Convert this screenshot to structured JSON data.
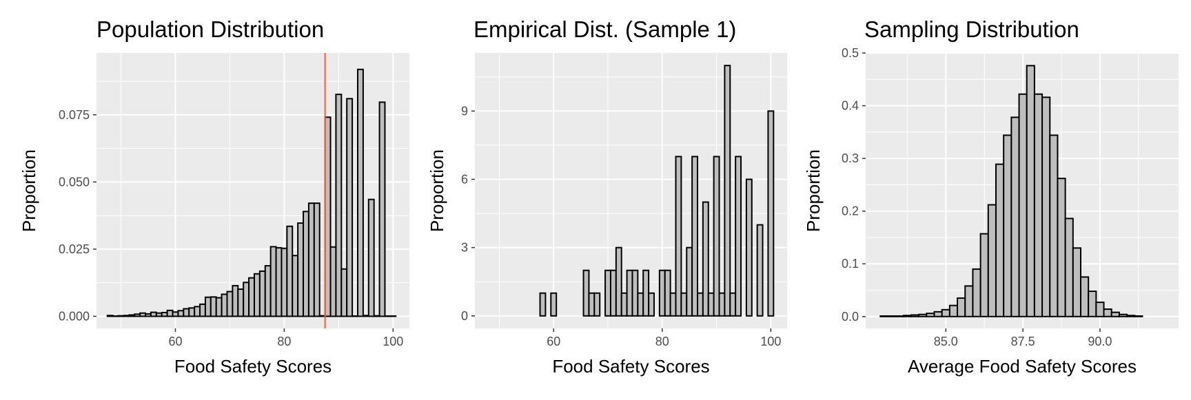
{
  "chart_data": [
    {
      "type": "bar",
      "title": "Population Distribution",
      "xlabel": "Food Safety Scores",
      "ylabel": "Proportion",
      "xlim": [
        45.5,
        103.0
      ],
      "ylim": [
        -0.0045,
        0.098
      ],
      "xticks": [
        60,
        80,
        100
      ],
      "xtick_labels": [
        "60",
        "80",
        "100"
      ],
      "yticks": [
        0.0,
        0.025,
        0.05,
        0.075
      ],
      "ytick_labels": [
        "0.000",
        "0.025",
        "0.050",
        "0.075"
      ],
      "bin_width": 1,
      "x": [
        48,
        49,
        50,
        51,
        52,
        53,
        54,
        55,
        56,
        57,
        58,
        59,
        60,
        61,
        62,
        63,
        64,
        65,
        66,
        67,
        68,
        69,
        70,
        71,
        72,
        73,
        74,
        75,
        76,
        77,
        78,
        79,
        80,
        81,
        82,
        83,
        84,
        85,
        86,
        87,
        88,
        89,
        90,
        91,
        92,
        93,
        94,
        95,
        96,
        97,
        98,
        99,
        100
      ],
      "values": [
        0.0003,
        0.0001,
        0.0002,
        0.0003,
        0.0005,
        0.0008,
        0.0012,
        0.0009,
        0.0015,
        0.0012,
        0.0014,
        0.0022,
        0.0016,
        0.0021,
        0.0028,
        0.0031,
        0.0036,
        0.0045,
        0.0071,
        0.0072,
        0.0069,
        0.0082,
        0.0092,
        0.0114,
        0.0101,
        0.0126,
        0.0143,
        0.0158,
        0.0168,
        0.0188,
        0.0259,
        0.0255,
        0.0253,
        0.0335,
        0.0226,
        0.0347,
        0.039,
        0.0421,
        0.0421,
        0.0002,
        0.0741,
        0.0258,
        0.0826,
        0.0176,
        0.081,
        0.0001,
        0.0919,
        0.0003,
        0.0435,
        0.0002,
        0.0797,
        0.0001,
        0.0001
      ],
      "vline": 87.5,
      "vline_color": "#ff5733",
      "bar_fill": "#bebebe",
      "bar_stroke": "#000000",
      "panel_background": "#ebebeb",
      "grid": true,
      "legend": "none"
    },
    {
      "type": "bar",
      "title": "Empirical Dist. (Sample 1)",
      "xlabel": "Food Safety Scores",
      "ylabel": "Proportion",
      "xlim": [
        45.5,
        103.0
      ],
      "ylim": [
        -0.55,
        11.55
      ],
      "xticks": [
        60,
        80,
        100
      ],
      "xtick_labels": [
        "60",
        "80",
        "100"
      ],
      "yticks": [
        0,
        3,
        6,
        9
      ],
      "ytick_labels": [
        "0",
        "3",
        "6",
        "9"
      ],
      "bin_width": 1,
      "x": [
        48,
        49,
        50,
        51,
        52,
        53,
        54,
        55,
        56,
        57,
        58,
        59,
        60,
        61,
        62,
        63,
        64,
        65,
        66,
        67,
        68,
        69,
        70,
        71,
        72,
        73,
        74,
        75,
        76,
        77,
        78,
        79,
        80,
        81,
        82,
        83,
        84,
        85,
        86,
        87,
        88,
        89,
        90,
        91,
        92,
        93,
        94,
        95,
        96,
        97,
        98,
        99,
        100
      ],
      "values": [
        0,
        0,
        0,
        0,
        0,
        0,
        0,
        0,
        0,
        0,
        1,
        0,
        1,
        0,
        0,
        0,
        0,
        0,
        2,
        1,
        1,
        0,
        2,
        2,
        3,
        1,
        2,
        2,
        1,
        2,
        1,
        0,
        2,
        2,
        1,
        7,
        1,
        3,
        7,
        1,
        5,
        1,
        7,
        1,
        11,
        1,
        7,
        0,
        6,
        0,
        4,
        0,
        9
      ],
      "bar_fill": "#bebebe",
      "bar_stroke": "#000000",
      "panel_background": "#ebebeb",
      "grid": true,
      "legend": "none"
    },
    {
      "type": "bar",
      "title": "Sampling Distribution",
      "xlabel": "Average Food Safety Scores",
      "ylabel": "Proportion",
      "xlim": [
        82.4,
        92.55
      ],
      "ylim": [
        -0.0225,
        0.5
      ],
      "xticks": [
        85.0,
        87.5,
        90.0
      ],
      "xtick_labels": [
        "85.0",
        "87.5",
        "90.0"
      ],
      "yticks": [
        0.0,
        0.1,
        0.2,
        0.3,
        0.4,
        0.5
      ],
      "ytick_labels": [
        "0.0",
        "0.1",
        "0.2",
        "0.3",
        "0.4",
        "0.5"
      ],
      "bin_width": 0.25,
      "x": [
        83.0,
        83.25,
        83.5,
        83.75,
        84.0,
        84.25,
        84.5,
        84.75,
        85.0,
        85.25,
        85.5,
        85.75,
        86.0,
        86.25,
        86.5,
        86.75,
        87.0,
        87.25,
        87.5,
        87.75,
        88.0,
        88.25,
        88.5,
        88.75,
        89.0,
        89.25,
        89.5,
        89.75,
        90.0,
        90.25,
        90.5,
        90.75,
        91.0,
        91.25
      ],
      "values": [
        0.001,
        0.001,
        0.001,
        0.002,
        0.003,
        0.004,
        0.006,
        0.009,
        0.013,
        0.021,
        0.035,
        0.058,
        0.09,
        0.157,
        0.212,
        0.289,
        0.344,
        0.378,
        0.422,
        0.476,
        0.422,
        0.416,
        0.344,
        0.262,
        0.186,
        0.13,
        0.075,
        0.048,
        0.027,
        0.014,
        0.008,
        0.004,
        0.002,
        0.001
      ],
      "bar_fill": "#bebebe",
      "bar_stroke": "#000000",
      "panel_background": "#ebebeb",
      "grid": true,
      "legend": "none"
    }
  ]
}
